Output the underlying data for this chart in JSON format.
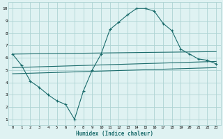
{
  "bg_color": "#dff2f2",
  "grid_color": "#aed4d4",
  "line_color": "#1a6b6b",
  "xlabel": "Humidex (Indice chaleur)",
  "xlim": [
    -0.5,
    23.5
  ],
  "ylim": [
    0.5,
    10.5
  ],
  "xticks": [
    0,
    1,
    2,
    3,
    4,
    5,
    6,
    7,
    8,
    9,
    10,
    11,
    12,
    13,
    14,
    15,
    16,
    17,
    18,
    19,
    20,
    21,
    22,
    23
  ],
  "yticks": [
    1,
    2,
    3,
    4,
    5,
    6,
    7,
    8,
    9,
    10
  ],
  "curve1_x": [
    0,
    1,
    2,
    3,
    4,
    5,
    6,
    7,
    8,
    9,
    10,
    11,
    12,
    13,
    14,
    15,
    16,
    17,
    18,
    19,
    20,
    21,
    22,
    23
  ],
  "curve1_y": [
    6.3,
    5.4,
    4.1,
    3.6,
    3.0,
    2.5,
    2.2,
    1.0,
    3.3,
    5.0,
    6.3,
    8.3,
    8.9,
    9.5,
    10.0,
    10.0,
    9.8,
    8.8,
    8.2,
    6.7,
    6.3,
    5.9,
    5.8,
    5.5
  ],
  "line2_x": [
    0,
    23
  ],
  "line2_y": [
    6.3,
    6.5
  ],
  "line3_x": [
    0,
    23
  ],
  "line3_y": [
    5.2,
    5.7
  ],
  "line4_x": [
    0,
    23
  ],
  "line4_y": [
    4.7,
    5.2
  ]
}
